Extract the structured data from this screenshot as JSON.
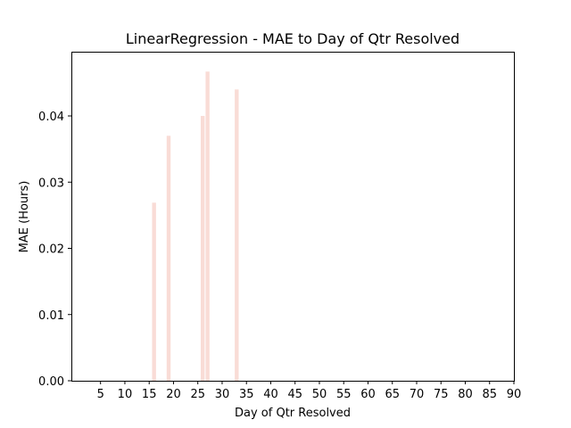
{
  "chart_data": {
    "type": "bar",
    "title": "LinearRegression - MAE to Day of Qtr Resolved",
    "xlabel": "Day of Qtr Resolved",
    "ylabel": "MAE (Hours)",
    "x": [
      16,
      19,
      26,
      27,
      33
    ],
    "values": [
      0.0269,
      0.037,
      0.04,
      0.0467,
      0.044
    ],
    "xlim": [
      -1,
      90
    ],
    "ylim": [
      0,
      0.0497
    ],
    "xticks": [
      "5",
      "10",
      "15",
      "20",
      "25",
      "30",
      "35",
      "40",
      "45",
      "50",
      "55",
      "60",
      "65",
      "70",
      "75",
      "80",
      "85",
      "90"
    ],
    "yticks": [
      "0.00",
      "0.01",
      "0.02",
      "0.03",
      "0.04"
    ],
    "bar_color": "#f9dcd6",
    "grid": false,
    "legend": "none"
  }
}
